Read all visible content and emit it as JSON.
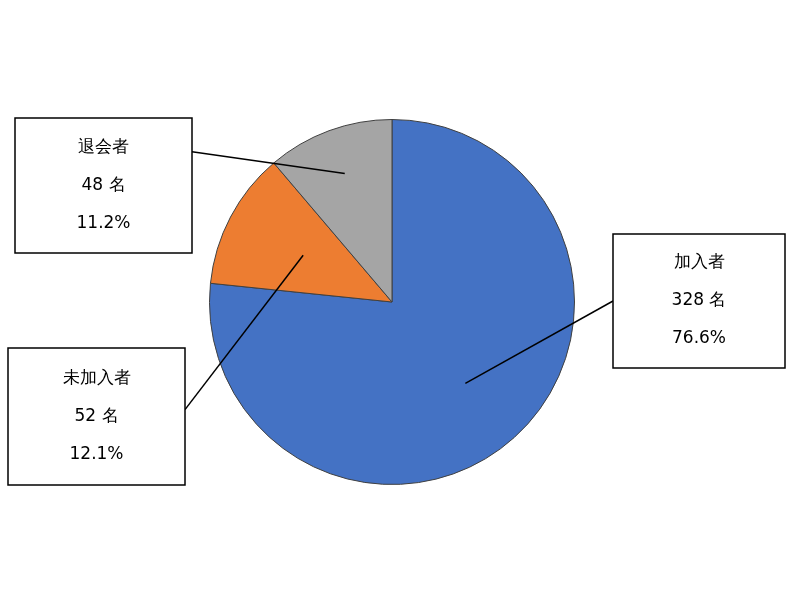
{
  "chart_data": {
    "type": "pie",
    "categories": [
      "加入者",
      "未加入者",
      "退会者"
    ],
    "values": [
      328,
      52,
      48
    ],
    "value_labels": [
      "328 名",
      "52 名",
      "48 名"
    ],
    "percentages": [
      76.6,
      12.1,
      11.2
    ],
    "percentage_labels": [
      "76.6%",
      "12.1%",
      "11.2%"
    ],
    "colors": [
      "#4472c4",
      "#ed7d31",
      "#a5a5a5"
    ],
    "data_labels": true
  }
}
